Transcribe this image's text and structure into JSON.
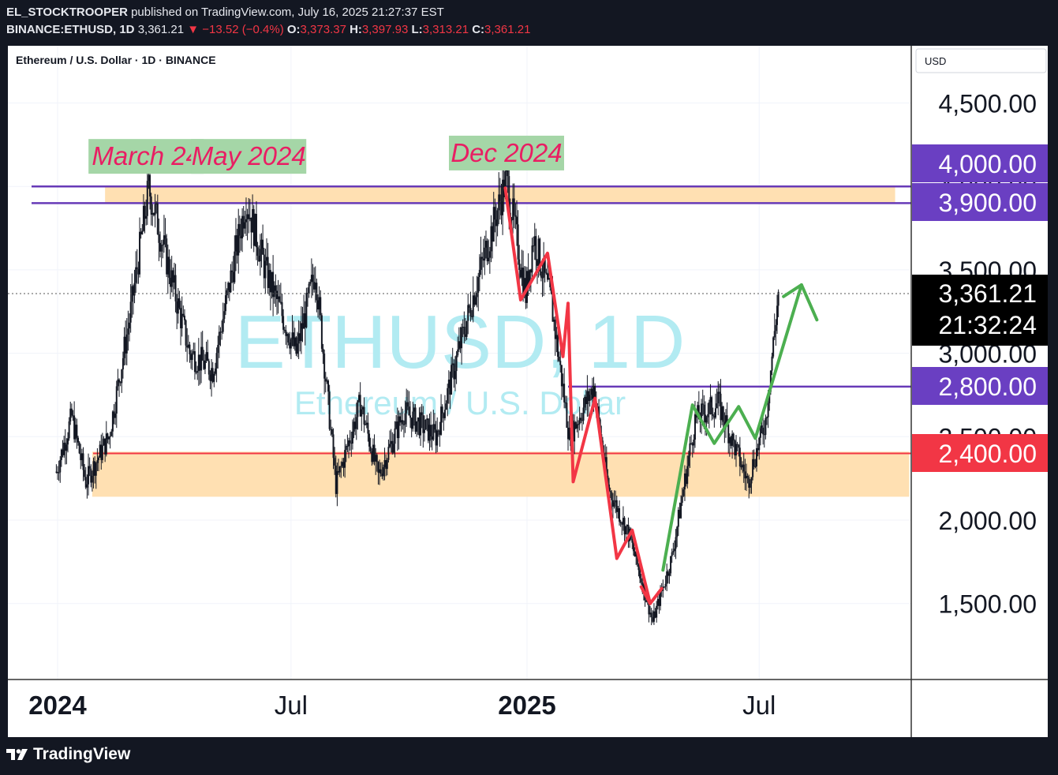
{
  "header": {
    "publisher": "EL_STOCKTROOPER",
    "published_text": "published on TradingView.com, July 16, 2025 21:27:37 EST",
    "symbol": "BINANCE:ETHUSD, 1D",
    "last": "3,361.21",
    "change": "−13.52 (−0.4%)",
    "ohlc": [
      {
        "k": "O:",
        "v": "3,373.37"
      },
      {
        "k": "H:",
        "v": "3,397.93"
      },
      {
        "k": "L:",
        "v": "3,313.21"
      },
      {
        "k": "C:",
        "v": "3,361.21"
      }
    ]
  },
  "chart_title": "Ethereum / U.S. Dollar · 1D · BINANCE",
  "currency": "USD",
  "watermark": {
    "main": "ETHUSD, 1D",
    "sub": "Ethereum / U.S. Dollar"
  },
  "colors": {
    "background": "#131722",
    "up": "#089981",
    "down": "#f23645",
    "zone": "#ffe0b2",
    "purple": "#673ab7",
    "label_purple": "#6a3fc2",
    "label_red": "#f23645",
    "green_path": "#4caf50",
    "red_path": "#f23645",
    "watermark": "#b2ebf2",
    "annotation_bg": "#a5d6a7",
    "annotation_text": "#e91e63"
  },
  "chart_data": {
    "type": "candlestick",
    "symbol": "BINANCE:ETHUSD",
    "interval": "1D",
    "ylim": [
      1150,
      4850
    ],
    "x_ticks": [
      {
        "label": "2024",
        "date": "2024-01-01",
        "bold": true
      },
      {
        "label": "Jul",
        "date": "2024-07-01",
        "bold": false
      },
      {
        "label": "2025",
        "date": "2025-01-01",
        "bold": true
      },
      {
        "label": "Jul",
        "date": "2025-07-01",
        "bold": false
      }
    ],
    "y_ticks": [
      "1,500.00",
      "2,000.00",
      "2,500.00",
      "3,000.00",
      "3,500.00",
      "4,000.00",
      "4,500.00"
    ],
    "y_tick_values": [
      1500,
      2000,
      2500,
      3000,
      3500,
      4000,
      4500
    ],
    "price_path": [
      {
        "date": "2023-12-31",
        "price": 2290
      },
      {
        "date": "2024-01-12",
        "price": 2620
      },
      {
        "date": "2024-01-23",
        "price": 2230
      },
      {
        "date": "2024-02-10",
        "price": 2500
      },
      {
        "date": "2024-02-26",
        "price": 3200
      },
      {
        "date": "2024-03-12",
        "price": 3990
      },
      {
        "date": "2024-03-28",
        "price": 3500
      },
      {
        "date": "2024-04-13",
        "price": 3000
      },
      {
        "date": "2024-05-01",
        "price": 2900
      },
      {
        "date": "2024-05-27",
        "price": 3920
      },
      {
        "date": "2024-06-11",
        "price": 3500
      },
      {
        "date": "2024-07-05",
        "price": 3000
      },
      {
        "date": "2024-07-20",
        "price": 3500
      },
      {
        "date": "2024-08-05",
        "price": 2210
      },
      {
        "date": "2024-08-24",
        "price": 2700
      },
      {
        "date": "2024-09-07",
        "price": 2260
      },
      {
        "date": "2024-09-27",
        "price": 2650
      },
      {
        "date": "2024-10-22",
        "price": 2500
      },
      {
        "date": "2024-11-22",
        "price": 3400
      },
      {
        "date": "2024-12-16",
        "price": 4050
      },
      {
        "date": "2024-12-31",
        "price": 3350
      },
      {
        "date": "2025-01-06",
        "price": 3700
      },
      {
        "date": "2025-01-20",
        "price": 3300
      },
      {
        "date": "2025-02-03",
        "price": 2500
      },
      {
        "date": "2025-02-22",
        "price": 2800
      },
      {
        "date": "2025-03-05",
        "price": 2200
      },
      {
        "date": "2025-03-22",
        "price": 1900
      },
      {
        "date": "2025-04-09",
        "price": 1390
      },
      {
        "date": "2025-04-24",
        "price": 1780
      },
      {
        "date": "2025-05-12",
        "price": 2600
      },
      {
        "date": "2025-05-30",
        "price": 2700
      },
      {
        "date": "2025-06-22",
        "price": 2230
      },
      {
        "date": "2025-07-06",
        "price": 2600
      },
      {
        "date": "2025-07-16",
        "price": 3361
      }
    ],
    "levels": [
      {
        "label": "4,000.00",
        "price": 4000,
        "color": "#6a3fc2"
      },
      {
        "label": "3,900.00",
        "price": 3900,
        "color": "#6a3fc2"
      },
      {
        "label": "2,800.00",
        "price": 2800,
        "color": "#6a3fc2"
      },
      {
        "label": "2,400.00",
        "price": 2400,
        "color": "#f23645"
      }
    ],
    "last_price": {
      "label": "3,361.21",
      "countdown": "21:32:24",
      "price": 3361.21
    },
    "zones": [
      {
        "from_date": "2024-02-07",
        "to_date": "2025-10-15",
        "low": 3900,
        "high": 4000
      },
      {
        "from_date": "2024-01-28",
        "to_date": "2025-10-26",
        "low": 2140,
        "high": 2410
      }
    ],
    "annotations": [
      {
        "text": "March 24",
        "date": "2024-03-10",
        "price": 4180
      },
      {
        "text": "May 2024",
        "date": "2024-05-29",
        "price": 4180
      },
      {
        "text": "Dec 2024",
        "date": "2024-12-16",
        "price": 4200
      }
    ],
    "red_path": [
      {
        "date": "2024-12-15",
        "price": 3990
      },
      {
        "date": "2024-12-27",
        "price": 3320
      },
      {
        "date": "2025-01-17",
        "price": 3600
      },
      {
        "date": "2025-01-29",
        "price": 2980
      },
      {
        "date": "2025-02-02",
        "price": 3300
      },
      {
        "date": "2025-02-06",
        "price": 2230
      },
      {
        "date": "2025-02-23",
        "price": 2730
      },
      {
        "date": "2025-03-12",
        "price": 1770
      },
      {
        "date": "2025-03-24",
        "price": 1940
      },
      {
        "date": "2025-04-07",
        "price": 1500
      },
      {
        "date": "2025-04-16",
        "price": 1590
      }
    ],
    "red_path_start": {
      "date": "2025-03-31",
      "price": 1600
    },
    "green_path": [
      {
        "date": "2025-04-17",
        "price": 1700
      },
      {
        "date": "2025-05-10",
        "price": 2690
      },
      {
        "date": "2025-05-27",
        "price": 2460
      },
      {
        "date": "2025-06-15",
        "price": 2680
      },
      {
        "date": "2025-06-28",
        "price": 2490
      },
      {
        "date": "2025-08-03",
        "price": 3410
      },
      {
        "date": "2025-08-15",
        "price": 3200
      }
    ],
    "green_path_start": {
      "date": "2025-07-20",
      "price": 3340
    }
  }
}
